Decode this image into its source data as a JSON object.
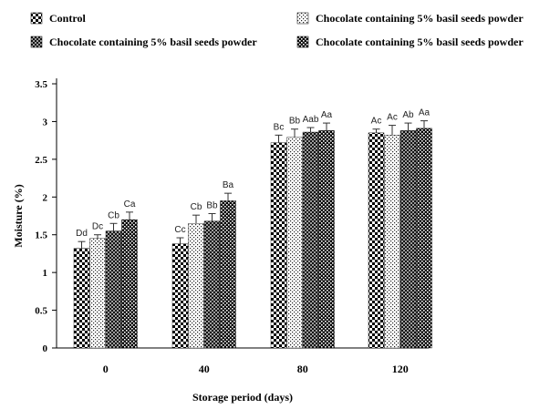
{
  "chart_data": {
    "type": "bar",
    "xlabel": "Storage period (days)",
    "ylabel": "Moisture (%)",
    "ylim": [
      0,
      3.5
    ],
    "yticks": [
      "0",
      "0.5",
      "1",
      "1.5",
      "2",
      "2.5",
      "3",
      "3.5"
    ],
    "categories": [
      "0",
      "40",
      "80",
      "120"
    ],
    "series": [
      {
        "name": "Control",
        "pattern": "checker",
        "values": [
          1.32,
          1.38,
          2.72,
          2.85
        ],
        "errors": [
          0.09,
          0.08,
          0.1,
          0.05
        ],
        "labels": [
          "Dd",
          "Cc",
          "Bc",
          "Ac"
        ]
      },
      {
        "name": "Chocolate containing 5% basil seeds powder",
        "pattern": "sparse-dots",
        "values": [
          1.45,
          1.65,
          2.79,
          2.82
        ],
        "errors": [
          0.05,
          0.11,
          0.11,
          0.13
        ],
        "labels": [
          "Dc",
          "Cb",
          "Bb",
          "Ac"
        ]
      },
      {
        "name": "Chocolate containing 5% basil seeds powder",
        "pattern": "dense-dots",
        "values": [
          1.55,
          1.68,
          2.86,
          2.88
        ],
        "errors": [
          0.1,
          0.1,
          0.06,
          0.1
        ],
        "labels": [
          "Cb",
          "Bb",
          "Aab",
          "Ab"
        ]
      },
      {
        "name": "Chocolate containing 5% basil seeds powder",
        "pattern": "dark-checker",
        "values": [
          1.7,
          1.95,
          2.88,
          2.91
        ],
        "errors": [
          0.1,
          0.1,
          0.1,
          0.1
        ],
        "labels": [
          "Ca",
          "Ba",
          "Aa",
          "Aa"
        ]
      }
    ]
  }
}
